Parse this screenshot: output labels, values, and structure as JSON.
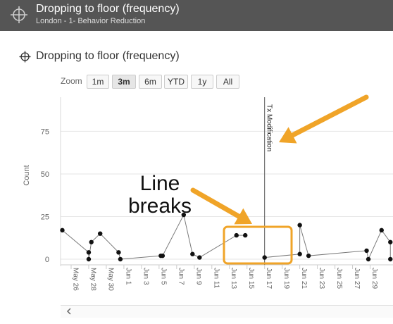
{
  "header": {
    "title": "Dropping to floor (frequency)",
    "subtitle": "London - 1- Behavior Reduction",
    "icon": "crosshair-icon"
  },
  "panel": {
    "title": "Dropping to floor (frequency)",
    "icon": "crosshair-icon"
  },
  "zoom": {
    "label": "Zoom",
    "buttons": [
      "1m",
      "3m",
      "6m",
      "YTD",
      "1y",
      "All"
    ],
    "selected": "3m"
  },
  "chart_data": {
    "type": "line",
    "ylabel": "Count",
    "yticks": [
      0,
      25,
      50,
      75
    ],
    "xticks": [
      "May 26",
      "May 28",
      "May 30",
      "Jun 1",
      "Jun 3",
      "Jun 5",
      "Jun 7",
      "Jun 9",
      "Jun 11",
      "Jun 13",
      "Jun 15",
      "Jun 17",
      "Jun 19",
      "Jun 21",
      "Jun 23",
      "Jun 25",
      "Jun 27",
      "Jun 29"
    ],
    "plot_line": {
      "label": "Tx Modification",
      "x": "Jun 17"
    },
    "series": [
      {
        "points": [
          {
            "x": "May 25",
            "y": 17
          },
          {
            "x": "May 28",
            "y": 4
          },
          {
            "x": "May 28",
            "y": 0
          },
          {
            "x": "May 28.3",
            "y": 10
          },
          {
            "x": "May 29.3",
            "y": 15
          },
          {
            "x": "May 31.4",
            "y": 4
          },
          {
            "x": "May 31.6",
            "y": 0
          },
          {
            "x": "Jun 5.2",
            "y": 2
          },
          {
            "x": "Jun 5.4",
            "y": 2
          },
          {
            "x": "Jun 7.8",
            "y": 26
          },
          {
            "x": "Jun 8.8",
            "y": 3
          },
          {
            "x": "Jun 9.6",
            "y": 1
          },
          {
            "x": "Jun 13.8",
            "y": 14
          },
          {
            "x": "Jun 14.8",
            "y": 14
          }
        ]
      },
      {
        "points": [
          {
            "x": "Jun 17",
            "y": 1
          },
          {
            "x": "Jun 21",
            "y": 3
          },
          {
            "x": "Jun 21",
            "y": 20
          },
          {
            "x": "Jun 22",
            "y": 2
          },
          {
            "x": "Jun 28.6",
            "y": 5
          },
          {
            "x": "Jun 28.8",
            "y": 0
          },
          {
            "x": "Jun 30.3",
            "y": 17
          },
          {
            "x": "Jun 31.3",
            "y": 10
          },
          {
            "x": "Jun 31.3",
            "y": 0
          }
        ]
      }
    ],
    "xrange_days": [
      24.8,
      31.6
    ],
    "ylim": [
      0,
      95
    ],
    "grid": true,
    "colors": {
      "line": "#7a7a7a",
      "point": "#111111",
      "plotline": "#555555",
      "grid": "#e6e6e6"
    }
  },
  "annotations": {
    "line_breaks_text": [
      "Line",
      "breaks"
    ],
    "arrow_color": "#f0a428",
    "box_color": "#f0a428"
  },
  "scrollbar": {
    "icon": "chevron-left-icon"
  }
}
